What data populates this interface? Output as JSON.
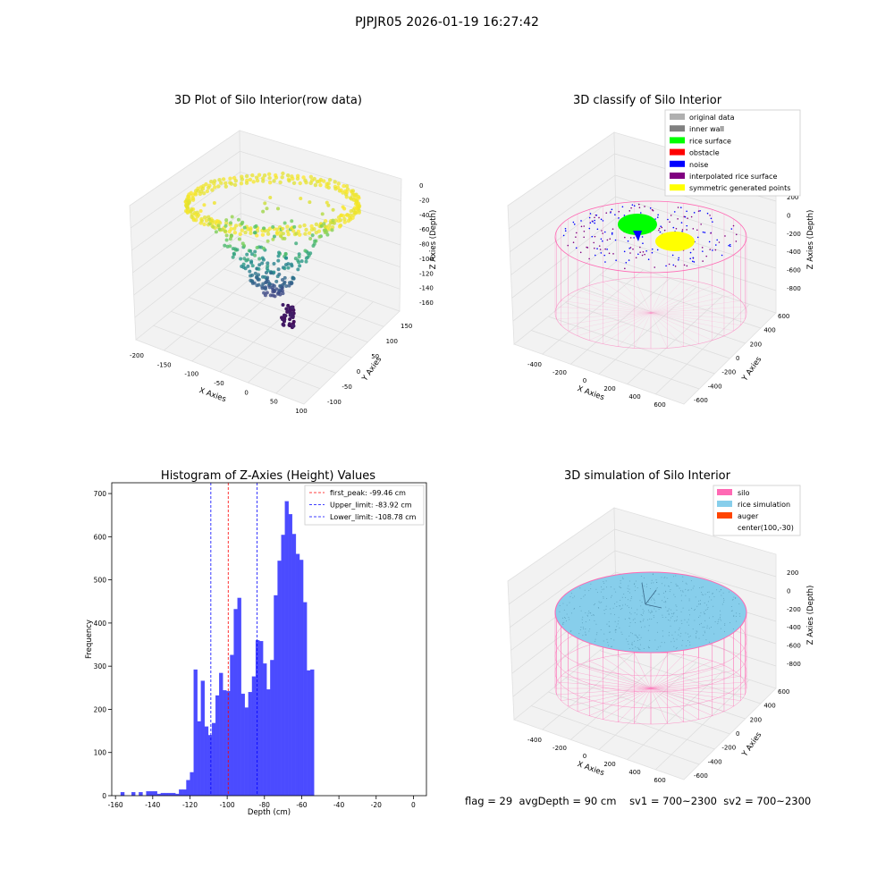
{
  "figure": {
    "suptitle": "PJPJR05 2026-01-19 16:27:42",
    "footer": {
      "flag": "flag = 29",
      "avg_depth": "avgDepth = 90 cm",
      "sv1": "sv1 = 700~2300",
      "sv2": "sv2 = 700~2300"
    }
  },
  "colors": {
    "hist_bar": "#4b4bff",
    "first_peak": "#ff0000",
    "limits": "#0000ff",
    "silo": "#ff69b4",
    "rice_sim": "#87ceeb",
    "auger": "#ff4500",
    "original": "#b0b0b0",
    "inner_wall": "#808080",
    "rice_surface": "#00ff00",
    "obstacle": "#ff0000",
    "noise": "#0000ff",
    "interp": "#800080",
    "symmetric": "#ffff00"
  },
  "chart_data": [
    {
      "type": "scatter",
      "title": "3D Plot of Silo Interior(row data)",
      "xlabel": "X Axies",
      "ylabel": "Y Axies",
      "zlabel": "Z Axies (Depth)",
      "x_ticks": [
        "-200",
        "-150",
        "-100",
        "-50",
        "0",
        "50",
        "100"
      ],
      "y_ticks": [
        "-100",
        "-50",
        "0",
        "50",
        "100",
        "150"
      ],
      "z_ticks": [
        "0",
        "-20",
        "-40",
        "-60",
        "-80",
        "-100",
        "-120",
        "-140",
        "-160"
      ],
      "colormap": "viridis"
    },
    {
      "type": "scatter",
      "title": "3D classify of Silo Interior",
      "xlabel": "X Axies",
      "ylabel": "Y Axies",
      "zlabel": "Z Axies (Depth)",
      "x_ticks": [
        "-400",
        "-200",
        "0",
        "200",
        "400",
        "600"
      ],
      "y_ticks": [
        "-600",
        "-400",
        "-200",
        "0",
        "200",
        "400",
        "600"
      ],
      "z_ticks": [
        "200",
        "0",
        "-200",
        "-400",
        "-600",
        "-800"
      ],
      "legend": [
        "original data",
        "inner wall",
        "rice surface",
        "obstacle",
        "noise",
        "interpolated rice surface",
        "symmetric generated points"
      ]
    },
    {
      "type": "bar",
      "title": "Histogram of Z-Axies (Height) Values",
      "xlabel": "Depth (cm)",
      "ylabel": "Frequency",
      "xlim": [
        -162,
        7
      ],
      "ylim": [
        0,
        725
      ],
      "x_ticks": [
        -160,
        -140,
        -120,
        -100,
        -80,
        -60,
        -40,
        -20,
        0
      ],
      "y_ticks": [
        0,
        100,
        200,
        300,
        400,
        500,
        600,
        700
      ],
      "bin_start": -157.2,
      "bin_width": 1.96,
      "values": [
        8,
        0,
        0,
        8,
        0,
        8,
        0,
        10,
        10,
        10,
        4,
        6,
        6,
        6,
        6,
        4,
        14,
        14,
        36,
        54,
        292,
        172,
        266,
        160,
        140,
        168,
        232,
        284,
        244,
        242,
        326,
        432,
        458,
        236,
        204,
        240,
        276,
        360,
        358,
        306,
        246,
        314,
        464,
        544,
        604,
        682,
        652,
        606,
        560,
        546,
        448,
        290,
        292
      ],
      "vlines": [
        {
          "x": -99.46,
          "label": "first_peak: -99.46 cm",
          "style": "first_peak"
        },
        {
          "x": -83.92,
          "label": "Upper_limit: -83.92 cm",
          "style": "limits"
        },
        {
          "x": -108.78,
          "label": "Lower_limit: -108.78 cm",
          "style": "limits"
        }
      ],
      "legend_position": "top-right"
    },
    {
      "type": "scatter",
      "title": "3D simulation of Silo Interior",
      "xlabel": "X Axies",
      "ylabel": "Y Axies",
      "zlabel": "Z Axies (Depth)",
      "x_ticks": [
        "-400",
        "-200",
        "0",
        "200",
        "400",
        "600"
      ],
      "y_ticks": [
        "-600",
        "-400",
        "-200",
        "0",
        "200",
        "400",
        "600"
      ],
      "z_ticks": [
        "200",
        "0",
        "-200",
        "-400",
        "-600",
        "-800"
      ],
      "legend": [
        "silo",
        "rice simulation",
        "auger",
        "center(100,-30)"
      ]
    }
  ]
}
